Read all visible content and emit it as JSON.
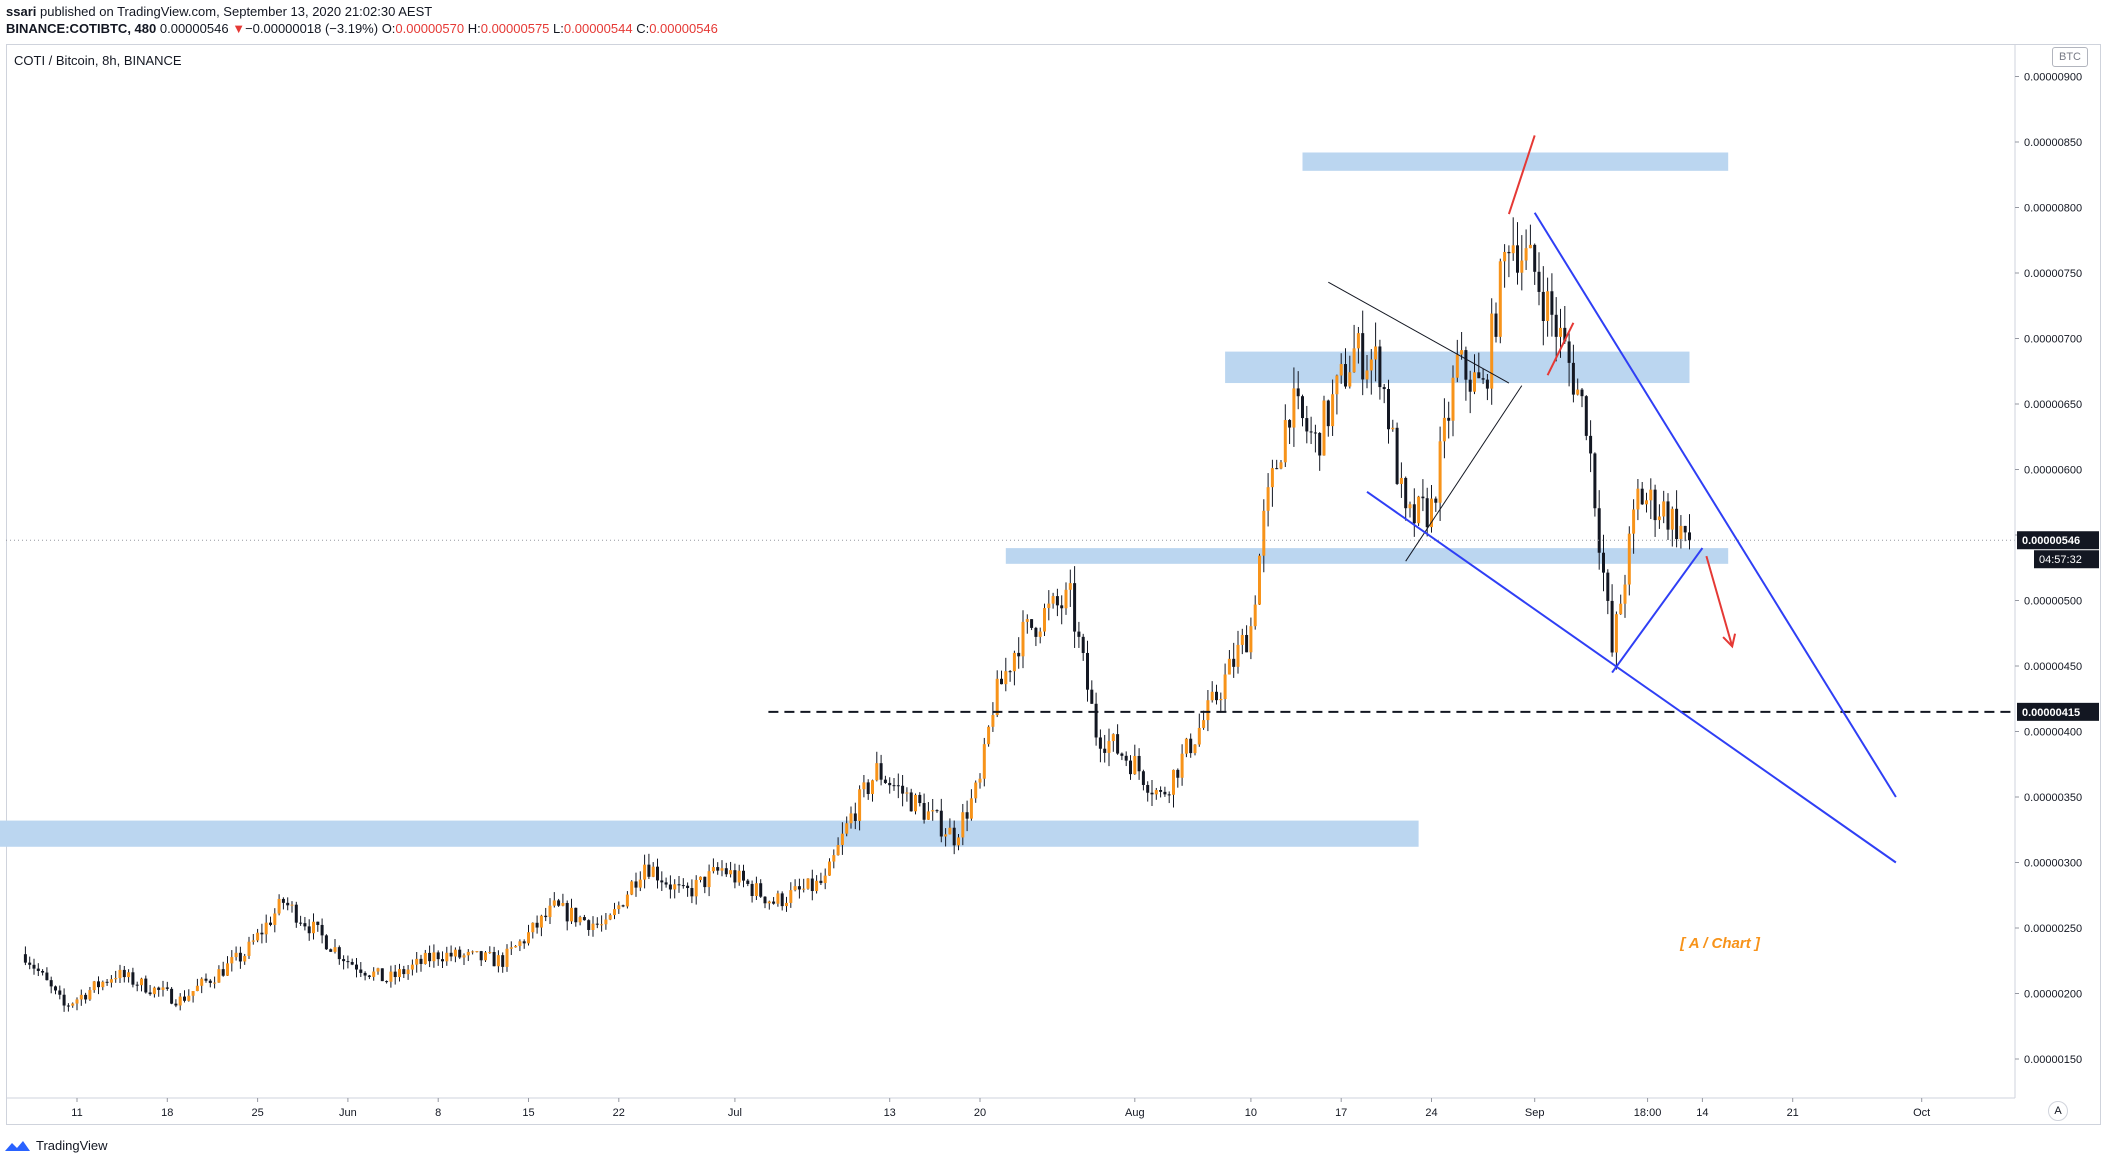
{
  "header": {
    "author": "ssari",
    "published_text": " published on TradingView.com, September 13, 2020 21:02:30 AEST",
    "symbol": "BINANCE:COTIBTC, 480",
    "last_price": "0.00000546",
    "change_arrow": "▼",
    "change": "−0.00000018 (−3.19%)",
    "o_label": "O:",
    "o_value": "0.00000570",
    "h_label": "H:",
    "h_value": "0.00000575",
    "l_label": "L:",
    "l_value": "0.00000544",
    "c_label": "C:",
    "c_value": "0.00000546"
  },
  "chart_title": "COTI / Bitcoin, 8h, BINANCE",
  "currency_label": "BTC",
  "auto_scale_label": "A",
  "footer_brand": "TradingView",
  "colors": {
    "bull": "#f7931a",
    "bear": "#131722",
    "zone": "#bbd6f0",
    "channel": "#2f3ff5",
    "red_line": "#e53935",
    "accent_label": "#f7931a"
  },
  "chart_data": {
    "type": "candlestick",
    "title": "COTI / Bitcoin, 8h, BINANCE",
    "ylim": [
      1.25e-06,
      9.25e-06
    ],
    "y_ticks": [
      "0.00000900",
      "0.00000850",
      "0.00000800",
      "0.00000750",
      "0.00000700",
      "0.00000650",
      "0.00000600",
      "0.00000550",
      "0.00000500",
      "0.00000450",
      "0.00000400",
      "0.00000350",
      "0.00000300",
      "0.00000250",
      "0.00000200",
      "0.00000150"
    ],
    "x_ticks": [
      "11",
      "18",
      "25",
      "Jun",
      "8",
      "15",
      "22",
      "Jul",
      "13",
      "20",
      "Aug",
      "10",
      "17",
      "24",
      "Sep",
      "18:00",
      "14",
      "21",
      "Oct"
    ],
    "close_anchors": [
      {
        "date": "2020-05-07",
        "close": 2.3e-06
      },
      {
        "date": "2020-05-10",
        "close": 1.9e-06
      },
      {
        "date": "2020-05-14",
        "close": 2.15e-06
      },
      {
        "date": "2020-05-19",
        "close": 1.95e-06
      },
      {
        "date": "2020-05-24",
        "close": 2.3e-06
      },
      {
        "date": "2020-05-27",
        "close": 2.7e-06
      },
      {
        "date": "2020-06-01",
        "close": 2.25e-06
      },
      {
        "date": "2020-06-04",
        "close": 2.1e-06
      },
      {
        "date": "2020-06-08",
        "close": 2.3e-06
      },
      {
        "date": "2020-06-13",
        "close": 2.25e-06
      },
      {
        "date": "2020-06-17",
        "close": 2.65e-06
      },
      {
        "date": "2020-06-21",
        "close": 2.5e-06
      },
      {
        "date": "2020-06-24",
        "close": 3e-06
      },
      {
        "date": "2020-06-27",
        "close": 2.75e-06
      },
      {
        "date": "2020-06-30",
        "close": 2.95e-06
      },
      {
        "date": "2020-07-04",
        "close": 2.7e-06
      },
      {
        "date": "2020-07-08",
        "close": 2.85e-06
      },
      {
        "date": "2020-07-10",
        "close": 3.35e-06
      },
      {
        "date": "2020-07-12",
        "close": 3.7e-06
      },
      {
        "date": "2020-07-15",
        "close": 3.45e-06
      },
      {
        "date": "2020-07-18",
        "close": 3.2e-06
      },
      {
        "date": "2020-07-20",
        "close": 3.6e-06
      },
      {
        "date": "2020-07-21",
        "close": 4.2e-06
      },
      {
        "date": "2020-07-23",
        "close": 4.7e-06
      },
      {
        "date": "2020-07-25",
        "close": 4.9e-06
      },
      {
        "date": "2020-07-27",
        "close": 5e-06
      },
      {
        "date": "2020-07-29",
        "close": 4e-06
      },
      {
        "date": "2020-08-01",
        "close": 3.75e-06
      },
      {
        "date": "2020-08-03",
        "close": 3.5e-06
      },
      {
        "date": "2020-08-07",
        "close": 4.2e-06
      },
      {
        "date": "2020-08-10",
        "close": 4.8e-06
      },
      {
        "date": "2020-08-11",
        "close": 5.6e-06
      },
      {
        "date": "2020-08-13",
        "close": 6.5e-06
      },
      {
        "date": "2020-08-15",
        "close": 6.2e-06
      },
      {
        "date": "2020-08-18",
        "close": 6.9e-06
      },
      {
        "date": "2020-08-20",
        "close": 6.8e-06
      },
      {
        "date": "2020-08-22",
        "close": 5.6e-06
      },
      {
        "date": "2020-08-24",
        "close": 5.7e-06
      },
      {
        "date": "2020-08-26",
        "close": 6.8e-06
      },
      {
        "date": "2020-08-28",
        "close": 6.6e-06
      },
      {
        "date": "2020-08-30",
        "close": 7.8e-06
      },
      {
        "date": "2020-09-01",
        "close": 7.5e-06
      },
      {
        "date": "2020-09-03",
        "close": 7e-06
      },
      {
        "date": "2020-09-05",
        "close": 6.4e-06
      },
      {
        "date": "2020-09-07",
        "close": 4.6e-06
      },
      {
        "date": "2020-09-08",
        "close": 5.2e-06
      },
      {
        "date": "2020-09-09",
        "close": 5.8e-06
      },
      {
        "date": "2020-09-11",
        "close": 5.7e-06
      },
      {
        "date": "2020-09-13",
        "close": 5.46e-06
      }
    ],
    "price_label": "0.00000546",
    "countdown_label": "04:57:32",
    "level_label": "0.00000415",
    "horizontal_level": 4.15e-06,
    "current_price": 5.46e-06,
    "zones": [
      {
        "from": "2020-08-14",
        "to": "2020-09-16",
        "low": 8.28e-06,
        "high": 8.42e-06
      },
      {
        "from": "2020-08-08",
        "to": "2020-09-13",
        "low": 6.66e-06,
        "high": 6.9e-06
      },
      {
        "from": "2020-07-22",
        "to": "2020-09-16",
        "low": 5.28e-06,
        "high": 5.4e-06
      },
      {
        "from": "2020-05-05",
        "to": "2020-08-23",
        "low": 3.12e-06,
        "high": 3.32e-06
      }
    ],
    "trendlines": [
      {
        "from": [
          "2020-08-16",
          7.43e-06
        ],
        "to": [
          "2020-08-30",
          6.66e-06
        ],
        "color": "black"
      },
      {
        "from": [
          "2020-08-22",
          5.3e-06
        ],
        "to": [
          "2020-08-31",
          6.64e-06
        ],
        "color": "black"
      },
      {
        "from": [
          "2020-08-30",
          7.95e-06
        ],
        "to": [
          "2020-09-01",
          8.55e-06
        ],
        "color": "red"
      },
      {
        "from": [
          "2020-09-02",
          6.72e-06
        ],
        "to": [
          "2020-09-04",
          7.12e-06
        ],
        "color": "red"
      },
      {
        "from": [
          "2020-09-01",
          7.96e-06
        ],
        "to": [
          "2020-09-29",
          3.5e-06
        ],
        "color": "blue"
      },
      {
        "from": [
          "2020-08-19",
          5.83e-06
        ],
        "to": [
          "2020-09-29",
          3e-06
        ],
        "color": "blue"
      },
      {
        "from": [
          "2020-09-07",
          4.45e-06
        ],
        "to": [
          "2020-09-14",
          5.4e-06
        ],
        "color": "blue"
      }
    ],
    "arrow": {
      "from": [
        "2020-09-14",
        5.4e-06
      ],
      "to": [
        "2020-09-16",
        4.65e-06
      ],
      "color": "red"
    },
    "annotation": "[ A / Chart ]"
  }
}
